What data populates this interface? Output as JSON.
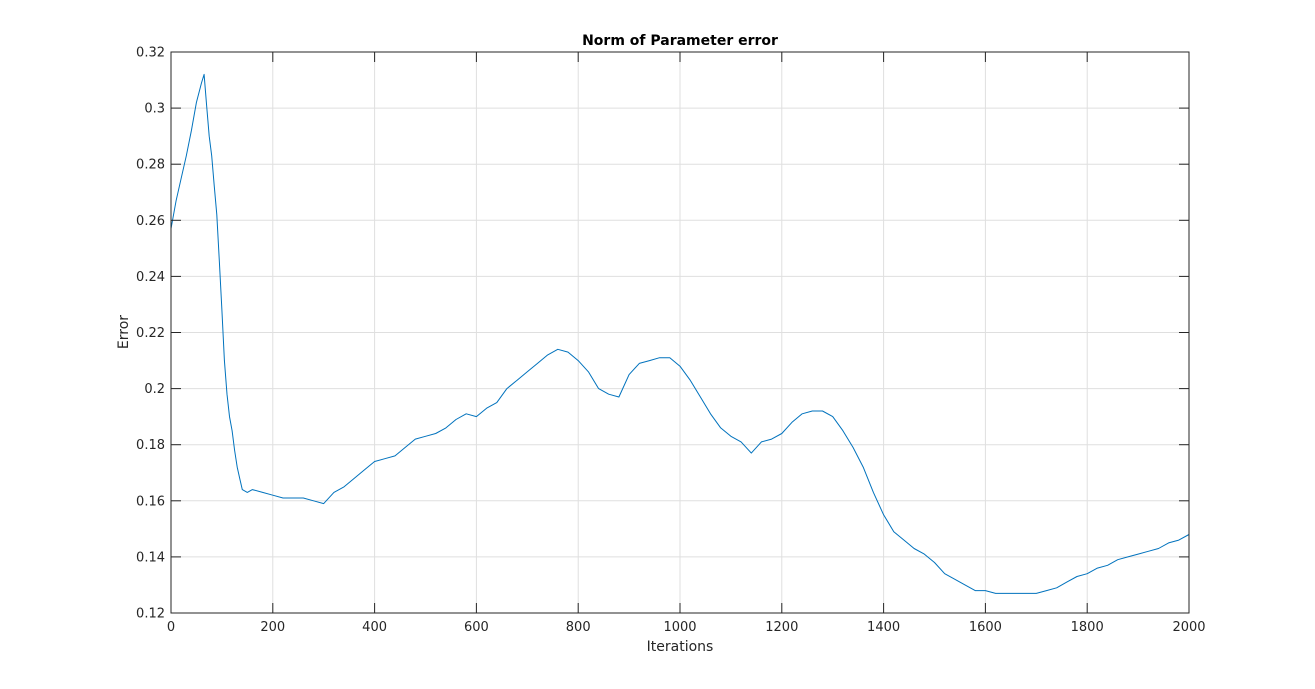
{
  "chart_data": {
    "type": "line",
    "title": "Norm of Parameter error",
    "xlabel": "Iterations",
    "ylabel": "Error",
    "xlim": [
      0,
      2000
    ],
    "ylim": [
      0.12,
      0.32
    ],
    "xticks": [
      0,
      200,
      400,
      600,
      800,
      1000,
      1200,
      1400,
      1600,
      1800,
      2000
    ],
    "xtick_labels": [
      "0",
      "200",
      "400",
      "600",
      "800",
      "1000",
      "1200",
      "1400",
      "1600",
      "1800",
      "2000"
    ],
    "yticks": [
      0.12,
      0.14,
      0.16,
      0.18,
      0.2,
      0.22,
      0.24,
      0.26,
      0.28,
      0.3,
      0.32
    ],
    "ytick_labels": [
      "0.12",
      "0.14",
      "0.16",
      "0.18",
      "0.2",
      "0.22",
      "0.24",
      "0.26",
      "0.28",
      "0.3",
      "0.32"
    ],
    "grid": true,
    "series": [
      {
        "color": "#0072bd",
        "x": [
          0,
          10,
          20,
          30,
          40,
          50,
          60,
          65,
          70,
          75,
          80,
          85,
          90,
          95,
          100,
          105,
          110,
          115,
          120,
          125,
          130,
          135,
          140,
          150,
          160,
          180,
          200,
          220,
          240,
          260,
          280,
          300,
          320,
          340,
          360,
          380,
          400,
          420,
          440,
          460,
          480,
          500,
          520,
          540,
          560,
          580,
          600,
          620,
          640,
          660,
          680,
          700,
          720,
          740,
          760,
          780,
          800,
          820,
          840,
          860,
          880,
          900,
          920,
          940,
          960,
          980,
          1000,
          1020,
          1040,
          1060,
          1080,
          1100,
          1120,
          1140,
          1160,
          1180,
          1200,
          1220,
          1240,
          1260,
          1280,
          1300,
          1320,
          1340,
          1360,
          1380,
          1400,
          1420,
          1440,
          1460,
          1480,
          1500,
          1520,
          1540,
          1560,
          1580,
          1600,
          1620,
          1640,
          1660,
          1680,
          1700,
          1720,
          1740,
          1760,
          1780,
          1800,
          1820,
          1840,
          1860,
          1880,
          1900,
          1920,
          1940,
          1960,
          1980,
          2000
        ],
        "y": [
          0.257,
          0.267,
          0.275,
          0.283,
          0.292,
          0.302,
          0.309,
          0.312,
          0.301,
          0.29,
          0.283,
          0.272,
          0.262,
          0.245,
          0.228,
          0.21,
          0.198,
          0.19,
          0.185,
          0.178,
          0.172,
          0.168,
          0.164,
          0.163,
          0.164,
          0.163,
          0.162,
          0.161,
          0.161,
          0.161,
          0.16,
          0.159,
          0.163,
          0.165,
          0.168,
          0.171,
          0.174,
          0.175,
          0.176,
          0.179,
          0.182,
          0.183,
          0.184,
          0.186,
          0.189,
          0.191,
          0.19,
          0.193,
          0.195,
          0.2,
          0.203,
          0.206,
          0.209,
          0.212,
          0.214,
          0.213,
          0.21,
          0.206,
          0.2,
          0.198,
          0.197,
          0.205,
          0.209,
          0.21,
          0.211,
          0.211,
          0.208,
          0.203,
          0.197,
          0.191,
          0.186,
          0.183,
          0.181,
          0.177,
          0.181,
          0.182,
          0.184,
          0.188,
          0.191,
          0.192,
          0.192,
          0.19,
          0.185,
          0.179,
          0.172,
          0.163,
          0.155,
          0.149,
          0.146,
          0.143,
          0.141,
          0.138,
          0.134,
          0.132,
          0.13,
          0.128,
          0.128,
          0.127,
          0.127,
          0.127,
          0.127,
          0.127,
          0.128,
          0.129,
          0.131,
          0.133,
          0.134,
          0.136,
          0.137,
          0.139,
          0.14,
          0.141,
          0.142,
          0.143,
          0.145,
          0.146,
          0.148
        ]
      }
    ]
  }
}
